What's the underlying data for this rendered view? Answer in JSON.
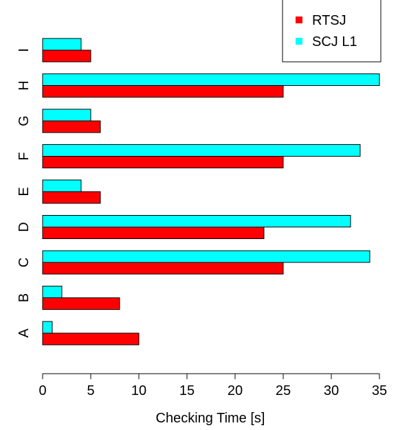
{
  "chart_data": {
    "type": "bar",
    "orientation": "horizontal",
    "categories": [
      "A",
      "B",
      "C",
      "D",
      "E",
      "F",
      "G",
      "H",
      "I"
    ],
    "series": [
      {
        "name": "RTSJ",
        "color": "#ff0000",
        "values": [
          10,
          8,
          25,
          23,
          6,
          25,
          6,
          25,
          5
        ]
      },
      {
        "name": "SCJ L1",
        "color": "#00ffff",
        "values": [
          1,
          2,
          34,
          32,
          4,
          33,
          5,
          35,
          4
        ]
      }
    ],
    "xlabel": "Checking Time [s]",
    "ylabel": "",
    "xlim": [
      0,
      35
    ],
    "xticks": [
      0,
      5,
      10,
      15,
      20,
      25,
      30,
      35
    ],
    "grid": false,
    "legend_position": "top-right"
  }
}
